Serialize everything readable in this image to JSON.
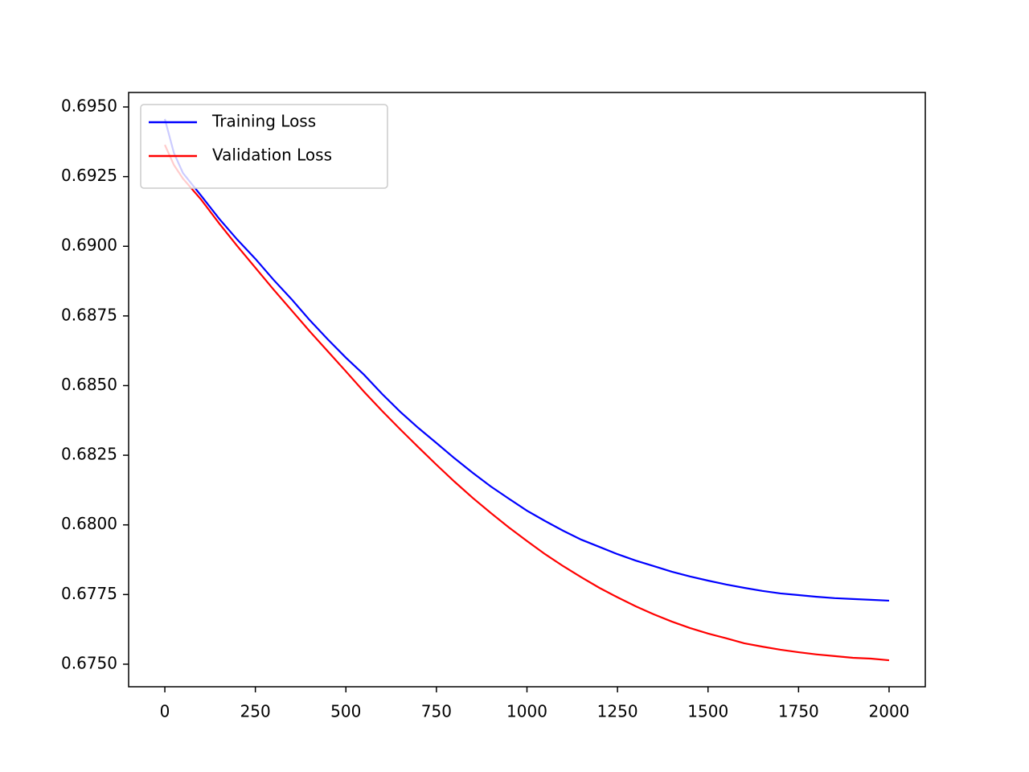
{
  "chart_data": {
    "type": "line",
    "x": [
      0,
      25,
      50,
      100,
      150,
      200,
      250,
      300,
      350,
      400,
      450,
      500,
      550,
      600,
      650,
      700,
      750,
      800,
      850,
      900,
      950,
      1000,
      1050,
      1100,
      1150,
      1200,
      1250,
      1300,
      1350,
      1400,
      1450,
      1500,
      1550,
      1600,
      1650,
      1700,
      1750,
      1800,
      1850,
      1900,
      1950,
      2000
    ],
    "series": [
      {
        "name": "Training Loss",
        "color": "#0000ff",
        "values": [
          0.69457,
          0.69335,
          0.69263,
          0.69182,
          0.69099,
          0.69024,
          0.68955,
          0.6888,
          0.6881,
          0.68735,
          0.68666,
          0.686,
          0.68539,
          0.6847,
          0.68406,
          0.68348,
          0.68294,
          0.68239,
          0.68187,
          0.68138,
          0.68094,
          0.68051,
          0.68014,
          0.67979,
          0.67947,
          0.67921,
          0.67895,
          0.67872,
          0.67852,
          0.67832,
          0.67815,
          0.678,
          0.67786,
          0.67774,
          0.67763,
          0.67754,
          0.67748,
          0.67742,
          0.67737,
          0.67734,
          0.67731,
          0.67728
        ]
      },
      {
        "name": "Validation Loss",
        "color": "#ff0000",
        "values": [
          0.69364,
          0.69292,
          0.69243,
          0.69168,
          0.69082,
          0.69001,
          0.68923,
          0.68845,
          0.6877,
          0.68695,
          0.68623,
          0.68551,
          0.68478,
          0.68409,
          0.68343,
          0.68279,
          0.68216,
          0.68155,
          0.68097,
          0.68043,
          0.67991,
          0.67942,
          0.67895,
          0.67852,
          0.67812,
          0.67774,
          0.6774,
          0.67708,
          0.67679,
          0.67653,
          0.6763,
          0.6761,
          0.67593,
          0.67575,
          0.67563,
          0.67552,
          0.67543,
          0.67535,
          0.67529,
          0.67523,
          0.6752,
          0.67514
        ]
      }
    ],
    "xlim": [
      -100,
      2100
    ],
    "xticks": [
      0,
      250,
      500,
      750,
      1000,
      1250,
      1500,
      1750,
      2000
    ],
    "ylim": [
      0.67419,
      0.69552
    ],
    "yticks": [
      {
        "value": 0.675,
        "label": "0.6750"
      },
      0.6775,
      {
        "value": 0.68,
        "label": "0.6800"
      },
      0.6825,
      {
        "value": 0.685,
        "label": "0.6850"
      },
      0.6875,
      {
        "value": 0.69,
        "label": "0.6900"
      },
      0.6925,
      {
        "value": 0.695,
        "label": "0.6950"
      }
    ],
    "legend": "upper left"
  }
}
